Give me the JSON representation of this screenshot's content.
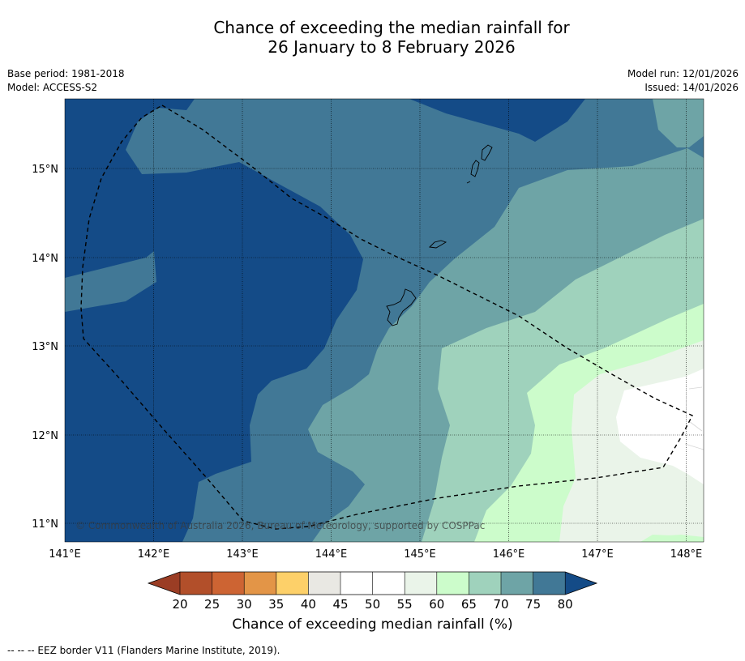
{
  "title": {
    "line1": "Chance of exceeding the median rainfall for",
    "line2": "26 January to 8 February 2026"
  },
  "meta": {
    "base_period": "Base period: 1981-2018",
    "model": "Model: ACCESS-S2",
    "model_run": "Model run: 12/01/2026",
    "issued": "Issued: 14/01/2026"
  },
  "map": {
    "copyright": "© Commonwealth of Australia 2026, Bureau of Meteorology, supported by COSPPac",
    "x_ticks": [
      "141°E",
      "142°E",
      "143°E",
      "144°E",
      "145°E",
      "146°E",
      "147°E",
      "148°E"
    ],
    "y_ticks": [
      "15°N",
      "14°N",
      "13°N",
      "12°N",
      "11°N"
    ]
  },
  "colorbar": {
    "labels": [
      "20",
      "25",
      "30",
      "35",
      "40",
      "45",
      "50",
      "55",
      "60",
      "65",
      "70",
      "75",
      "80"
    ],
    "colors": {
      "below20": "#9b3d24",
      "c20_25": "#b24f2a",
      "c25_30": "#cd6433",
      "c30_35": "#e39547",
      "c35_40": "#fdd069",
      "c40_45": "#e9e8e3",
      "c45_50": "#ffffff",
      "c50_55": "#ffffff",
      "c55_60": "#eaf4e9",
      "c60_65": "#ccfccb",
      "c65_70": "#9fd2bc",
      "c70_75": "#6ea4a6",
      "c75_80": "#417896",
      "above80": "#144b87"
    },
    "title": "Chance of exceeding median rainfall (%)"
  },
  "footer": "--  --  -- EEZ border V11 (Flanders Marine Institute, 2019)."
}
